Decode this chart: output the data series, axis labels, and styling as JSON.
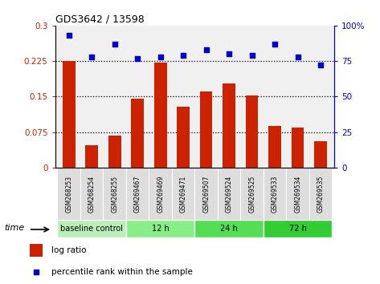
{
  "title": "GDS3642 / 13598",
  "categories": [
    "GSM268253",
    "GSM268254",
    "GSM268255",
    "GSM269467",
    "GSM269469",
    "GSM269471",
    "GSM269507",
    "GSM269524",
    "GSM269525",
    "GSM269533",
    "GSM269534",
    "GSM269535"
  ],
  "log_ratio": [
    0.225,
    0.048,
    0.068,
    0.145,
    0.222,
    0.128,
    0.16,
    0.178,
    0.152,
    0.088,
    0.085,
    0.055
  ],
  "percentile_rank": [
    93,
    78,
    87,
    77,
    78,
    79,
    83,
    80,
    79,
    87,
    78,
    72
  ],
  "bar_color": "#cc2200",
  "dot_color": "#0000cc",
  "groups": [
    {
      "label": "baseline control",
      "start": 0,
      "end": 3,
      "color": "#bbeebb"
    },
    {
      "label": "12 h",
      "start": 3,
      "end": 6,
      "color": "#88ee88"
    },
    {
      "label": "24 h",
      "start": 6,
      "end": 9,
      "color": "#55dd55"
    },
    {
      "label": "72 h",
      "start": 9,
      "end": 12,
      "color": "#33cc33"
    }
  ],
  "ylim_left": [
    0,
    0.3
  ],
  "ylim_right": [
    0,
    100
  ],
  "yticks_left": [
    0,
    0.075,
    0.15,
    0.225,
    0.3
  ],
  "yticks_right": [
    0,
    25,
    50,
    75,
    100
  ],
  "ytick_labels_left": [
    "0",
    "0.075",
    "0.15",
    "0.225",
    "0.3"
  ],
  "ytick_labels_right": [
    "0",
    "25",
    "50",
    "75",
    "100%"
  ],
  "hlines": [
    0.075,
    0.15,
    0.225
  ],
  "legend_log_ratio": "log ratio",
  "legend_percentile": "percentile rank within the sample",
  "time_label": "time",
  "bg_color": "#ffffff",
  "plot_bg": "#f0f0f0",
  "tick_box_color": "#dddddd"
}
